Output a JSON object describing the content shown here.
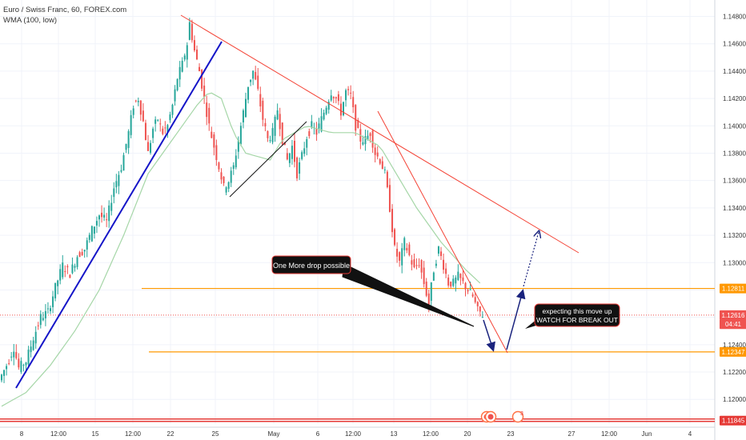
{
  "header": {
    "symbol_line": "Euro / Swiss Franc, 60, FOREX.com",
    "indicator_line": "WMA (100, low)"
  },
  "colors": {
    "up": "#26a69a",
    "down": "#ef5350",
    "trendline_red": "#f44336",
    "trendline_blue": "#1515c8",
    "trendline_black": "#111111",
    "arrow_blue": "#1a237e",
    "level_orange": "#ff9800",
    "level_red": "#e53935",
    "wma": "#a5d6a7",
    "grid": "#f0f3fa",
    "axis_text": "#333333"
  },
  "annotations": {
    "callout_drop": "One More drop possible",
    "callout_breakout_line1": "expecting this move up",
    "callout_breakout_line2": "WATCH FOR BREAK OUT"
  },
  "event_badges": [
    "3"
  ],
  "chart_data": {
    "type": "candlestick",
    "title": "Euro / Swiss Franc, 60, FOREX.com",
    "indicator": "WMA (100, low)",
    "y_axis_side": "right",
    "ylim": [
      1.1182,
      1.1492
    ],
    "y_ticks": [
      1.12,
      1.122,
      1.124,
      1.126,
      1.128,
      1.13,
      1.132,
      1.134,
      1.136,
      1.138,
      1.14,
      1.142,
      1.144,
      1.146,
      1.148
    ],
    "y_tick_labels": [
      "1.12000",
      "1.12200",
      "1.12400",
      "",
      "",
      "1.13000",
      "1.13200",
      "1.13400",
      "1.13600",
      "1.13800",
      "1.14000",
      "1.14200",
      "1.14400",
      "1.14600",
      "1.14800"
    ],
    "x_tick_labels": [
      "8",
      "12:00",
      "15",
      "12:00",
      "22",
      "25",
      "May",
      "6",
      "12:00",
      "13",
      "12:00",
      "20",
      "23",
      "27",
      "12:00",
      "Jun",
      "4"
    ],
    "price_labels": [
      {
        "label": "1.12811",
        "value": 1.12811,
        "color": "#ff9800"
      },
      {
        "label": "1.12616",
        "value": 1.12616,
        "color": "#ef5350"
      },
      {
        "label": "04:41",
        "value": 1.1255,
        "color": "#ef5350"
      },
      {
        "label": "1.12347",
        "value": 1.12347,
        "color": "#ff9800"
      },
      {
        "label": "1.11845",
        "value": 1.11845,
        "color": "#e53935"
      }
    ],
    "horizontal_levels": [
      {
        "value": 1.12811,
        "color": "#ff9800",
        "style": "solid"
      },
      {
        "value": 1.12347,
        "color": "#ff9800",
        "style": "solid"
      },
      {
        "value": 1.11845,
        "color": "#e53935",
        "style": "solid-double"
      },
      {
        "value": 1.12616,
        "color": "#ef5350",
        "style": "dotted"
      }
    ],
    "price_path": [
      [
        0,
        1.1214
      ],
      [
        3,
        1.1225
      ],
      [
        6,
        1.1238
      ],
      [
        8,
        1.1223
      ],
      [
        11,
        1.1228
      ],
      [
        14,
        1.1245
      ],
      [
        17,
        1.126
      ],
      [
        20,
        1.1264
      ],
      [
        23,
        1.1282
      ],
      [
        26,
        1.1298
      ],
      [
        29,
        1.1292
      ],
      [
        32,
        1.1305
      ],
      [
        35,
        1.131
      ],
      [
        38,
        1.1324
      ],
      [
        41,
        1.1335
      ],
      [
        44,
        1.133
      ],
      [
        47,
        1.1355
      ],
      [
        50,
        1.137
      ],
      [
        53,
        1.1395
      ],
      [
        55,
        1.1415
      ],
      [
        57,
        1.142
      ],
      [
        59,
        1.1403
      ],
      [
        61,
        1.138
      ],
      [
        63,
        1.1398
      ],
      [
        65,
        1.1405
      ],
      [
        67,
        1.1395
      ],
      [
        69,
        1.14
      ],
      [
        71,
        1.1415
      ],
      [
        73,
        1.1435
      ],
      [
        75,
        1.1445
      ],
      [
        77,
        1.146
      ],
      [
        78,
        1.1475
      ],
      [
        80,
        1.1455
      ],
      [
        82,
        1.144
      ],
      [
        84,
        1.142
      ],
      [
        86,
        1.14
      ],
      [
        88,
        1.1385
      ],
      [
        90,
        1.137
      ],
      [
        92,
        1.1355
      ],
      [
        94,
        1.136
      ],
      [
        96,
        1.137
      ],
      [
        98,
        1.139
      ],
      [
        100,
        1.141
      ],
      [
        102,
        1.143
      ],
      [
        104,
        1.144
      ],
      [
        106,
        1.1425
      ],
      [
        108,
        1.1405
      ],
      [
        110,
        1.139
      ],
      [
        112,
        1.1395
      ],
      [
        114,
        1.1412
      ],
      [
        116,
        1.139
      ],
      [
        118,
        1.1375
      ],
      [
        120,
        1.1385
      ],
      [
        122,
        1.1365
      ],
      [
        124,
        1.1378
      ],
      [
        126,
        1.1392
      ],
      [
        128,
        1.14
      ],
      [
        130,
        1.1395
      ],
      [
        132,
        1.1405
      ],
      [
        134,
        1.1415
      ],
      [
        136,
        1.1425
      ],
      [
        138,
        1.142
      ],
      [
        140,
        1.141
      ],
      [
        142,
        1.1425
      ],
      [
        144,
        1.1422
      ],
      [
        146,
        1.14
      ],
      [
        148,
        1.139
      ],
      [
        150,
        1.139
      ],
      [
        152,
        1.1395
      ],
      [
        154,
        1.138
      ],
      [
        156,
        1.1375
      ],
      [
        158,
        1.1365
      ],
      [
        160,
        1.134
      ],
      [
        162,
        1.131
      ],
      [
        164,
        1.13
      ],
      [
        166,
        1.1315
      ],
      [
        168,
        1.1305
      ],
      [
        170,
        1.1295
      ],
      [
        172,
        1.13
      ],
      [
        174,
        1.1285
      ],
      [
        176,
        1.127
      ],
      [
        178,
        1.1295
      ],
      [
        180,
        1.131
      ],
      [
        182,
        1.1298
      ],
      [
        184,
        1.1285
      ],
      [
        186,
        1.1285
      ],
      [
        188,
        1.129
      ],
      [
        190,
        1.1285
      ],
      [
        192,
        1.128
      ],
      [
        194,
        1.1275
      ],
      [
        196,
        1.1265
      ],
      [
        198,
        1.1262
      ]
    ],
    "wma_path": [
      [
        0,
        1.1195
      ],
      [
        10,
        1.1205
      ],
      [
        20,
        1.1225
      ],
      [
        30,
        1.125
      ],
      [
        40,
        1.128
      ],
      [
        50,
        1.132
      ],
      [
        60,
        1.1365
      ],
      [
        70,
        1.139
      ],
      [
        80,
        1.1415
      ],
      [
        85,
        1.1425
      ],
      [
        90,
        1.142
      ],
      [
        95,
        1.1395
      ],
      [
        100,
        1.138
      ],
      [
        110,
        1.1375
      ],
      [
        115,
        1.139
      ],
      [
        125,
        1.14
      ],
      [
        135,
        1.1395
      ],
      [
        145,
        1.1395
      ],
      [
        155,
        1.1385
      ],
      [
        160,
        1.137
      ],
      [
        170,
        1.134
      ],
      [
        180,
        1.1315
      ],
      [
        190,
        1.1295
      ],
      [
        196,
        1.1285
      ]
    ]
  }
}
